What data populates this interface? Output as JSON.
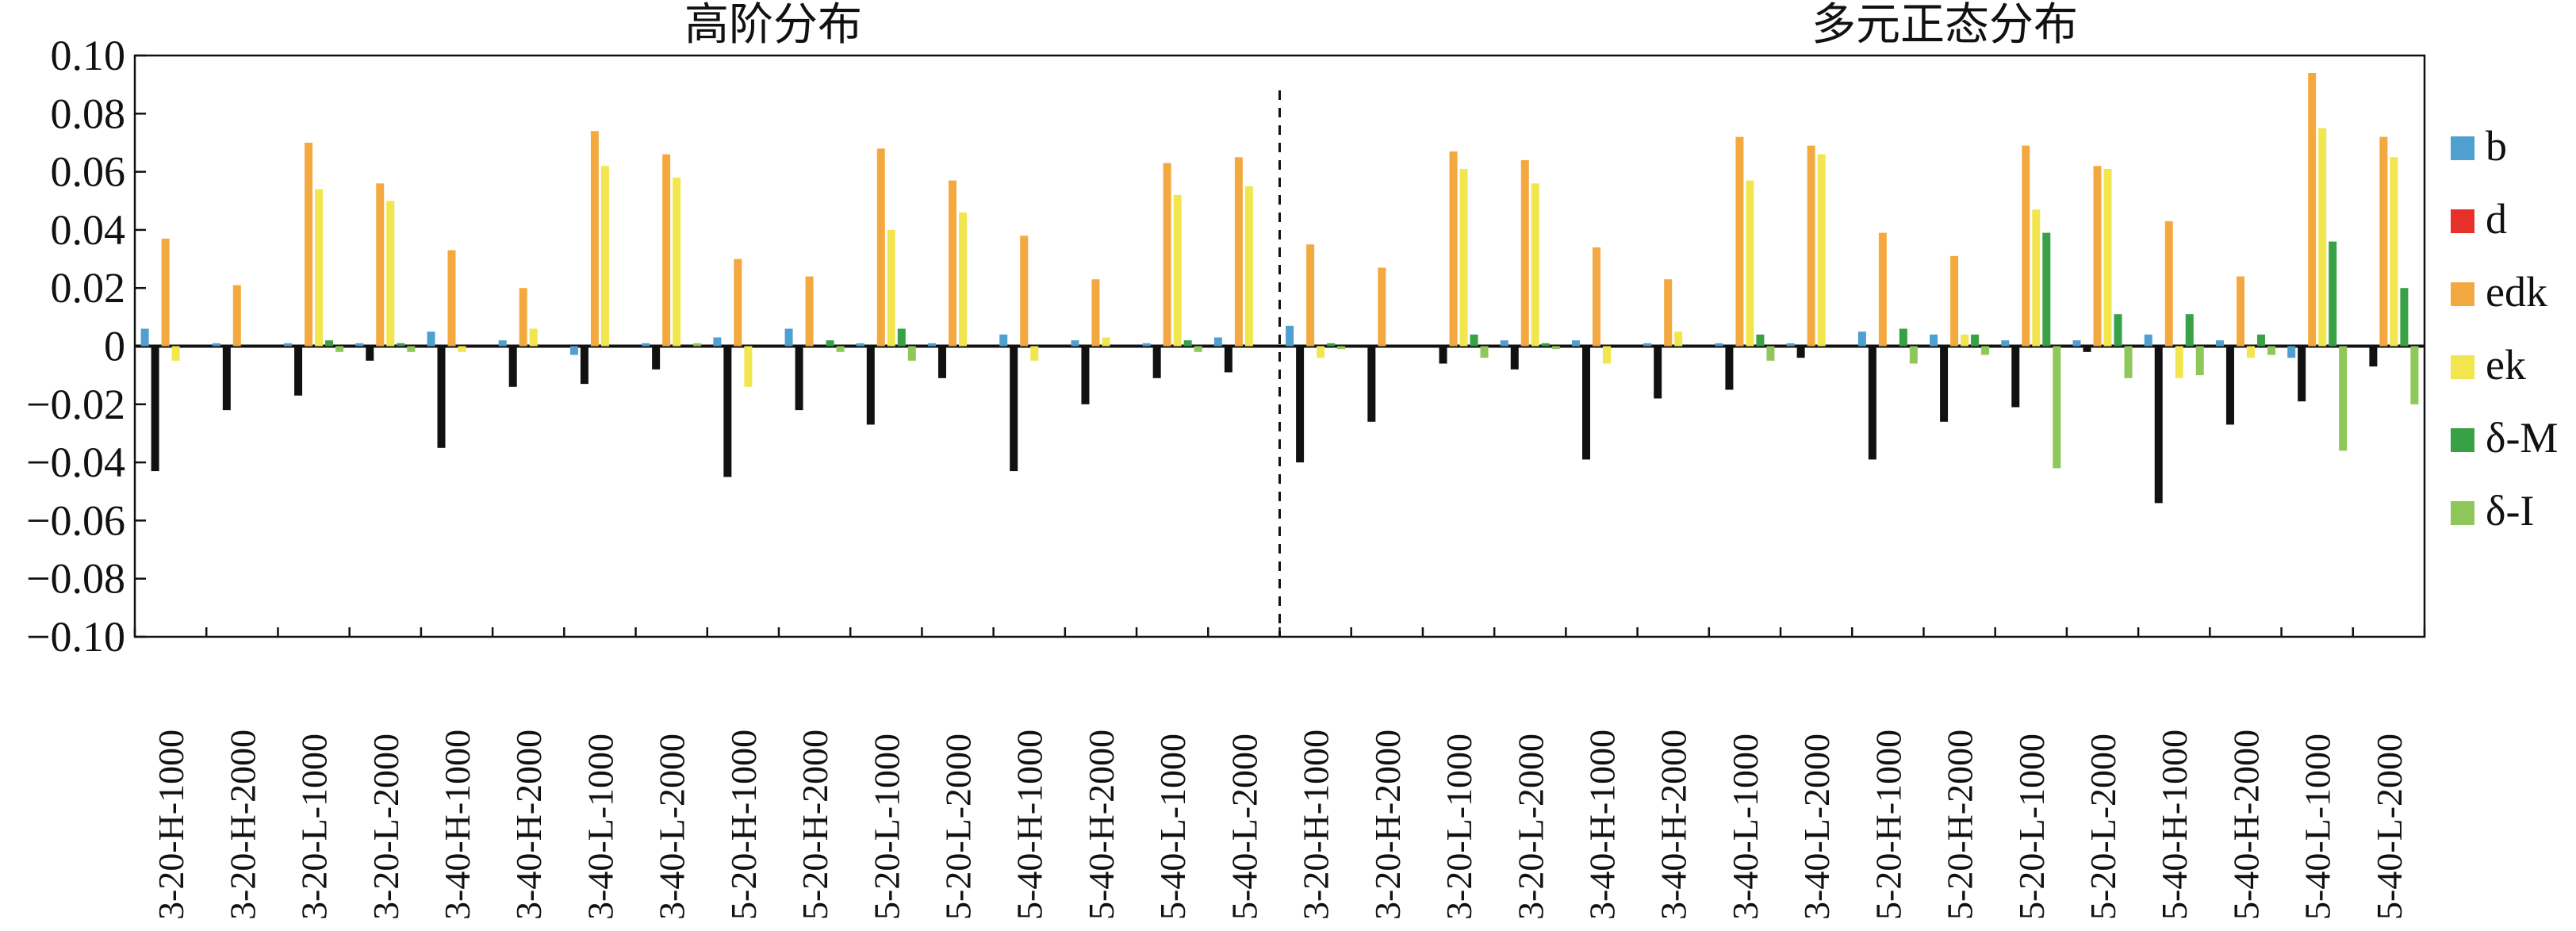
{
  "chart_data": {
    "type": "bar",
    "section_titles": [
      "高阶分布",
      "多元正态分布"
    ],
    "categories": [
      "3-20-H-1000",
      "3-20-H-2000",
      "3-20-L-1000",
      "3-20-L-2000",
      "3-40-H-1000",
      "3-40-H-2000",
      "3-40-L-1000",
      "3-40-L-2000",
      "5-20-H-1000",
      "5-20-H-2000",
      "5-20-L-1000",
      "5-20-L-2000",
      "5-40-H-1000",
      "5-40-H-2000",
      "5-40-L-1000",
      "5-40-L-2000",
      "3-20-H-1000",
      "3-20-H-2000",
      "3-20-L-1000",
      "3-20-L-2000",
      "3-40-H-1000",
      "3-40-H-2000",
      "3-40-L-1000",
      "3-40-L-2000",
      "5-20-H-1000",
      "5-20-H-2000",
      "5-20-L-1000",
      "5-20-L-2000",
      "5-40-H-1000",
      "5-40-H-2000",
      "5-40-L-1000",
      "5-40-L-2000"
    ],
    "series": [
      {
        "name": "b",
        "color": "#4f9fd0",
        "values": [
          0.006,
          0.001,
          0.001,
          0.001,
          0.005,
          0.002,
          -0.003,
          0.001,
          0.003,
          0.006,
          0.001,
          0.001,
          0.004,
          0.002,
          0.001,
          0.003,
          0.007,
          0.0,
          0.0,
          0.002,
          0.002,
          0.001,
          0.001,
          0.001,
          0.005,
          0.004,
          0.002,
          0.002,
          0.004,
          0.002,
          -0.004,
          0.0
        ]
      },
      {
        "name": "d",
        "color": "#e8302a",
        "values": [
          -0.043,
          -0.022,
          -0.017,
          -0.005,
          -0.035,
          -0.014,
          -0.013,
          -0.008,
          -0.045,
          -0.022,
          -0.027,
          -0.011,
          -0.043,
          -0.02,
          -0.011,
          -0.009,
          -0.04,
          -0.026,
          -0.006,
          -0.008,
          -0.039,
          -0.018,
          -0.015,
          -0.004,
          -0.039,
          -0.026,
          -0.021,
          -0.002,
          -0.054,
          -0.027,
          -0.019,
          -0.007
        ]
      },
      {
        "name": "edk",
        "color": "#f4a940",
        "values": [
          0.037,
          0.021,
          0.07,
          0.056,
          0.033,
          0.02,
          0.074,
          0.066,
          0.03,
          0.024,
          0.068,
          0.057,
          0.038,
          0.023,
          0.063,
          0.065,
          0.035,
          0.027,
          0.067,
          0.064,
          0.034,
          0.023,
          0.072,
          0.069,
          0.039,
          0.031,
          0.069,
          0.062,
          0.043,
          0.024,
          0.094,
          0.072
        ]
      },
      {
        "name": "ek",
        "color": "#f2e64e",
        "values": [
          -0.005,
          0.0,
          0.054,
          0.05,
          -0.002,
          0.006,
          0.062,
          0.058,
          -0.014,
          0.0,
          0.04,
          0.046,
          -0.005,
          0.003,
          0.052,
          0.055,
          -0.004,
          0.0,
          0.061,
          0.056,
          -0.006,
          0.005,
          0.057,
          0.066,
          0.0,
          0.004,
          0.047,
          0.061,
          -0.011,
          -0.004,
          0.075,
          0.065
        ]
      },
      {
        "name": "δ-M",
        "color": "#38a045",
        "values": [
          0.0,
          0.0,
          0.002,
          0.001,
          0.0,
          0.0,
          0.0,
          0.0,
          0.0,
          0.002,
          0.006,
          0.0,
          0.0,
          0.0,
          0.002,
          0.0,
          0.001,
          0.0,
          0.004,
          0.001,
          0.0,
          0.0,
          0.004,
          0.0,
          0.006,
          0.004,
          0.039,
          0.011,
          0.011,
          0.004,
          0.036,
          0.02
        ]
      },
      {
        "name": "δ-I",
        "color": "#8fc75a",
        "values": [
          0.0,
          0.0,
          -0.002,
          -0.002,
          0.0,
          0.0,
          0.0,
          0.001,
          0.0,
          -0.002,
          -0.005,
          0.0,
          0.0,
          0.0,
          -0.002,
          0.0,
          -0.001,
          0.0,
          -0.004,
          -0.001,
          0.0,
          0.0,
          -0.005,
          0.0,
          -0.006,
          -0.003,
          -0.042,
          -0.011,
          -0.01,
          -0.003,
          -0.036,
          -0.02
        ]
      }
    ],
    "ylim": [
      -0.1,
      0.1
    ],
    "yticks": [
      "0.10",
      "0.08",
      "0.06",
      "0.04",
      "0.02",
      "0",
      "−0.02",
      "−0.04",
      "−0.06",
      "−0.08",
      "−0.10"
    ],
    "xlabel": "",
    "ylabel": "",
    "legend_position": "right",
    "divider": "dashed vertical line between the two groups of 16 categories",
    "grid": false
  }
}
